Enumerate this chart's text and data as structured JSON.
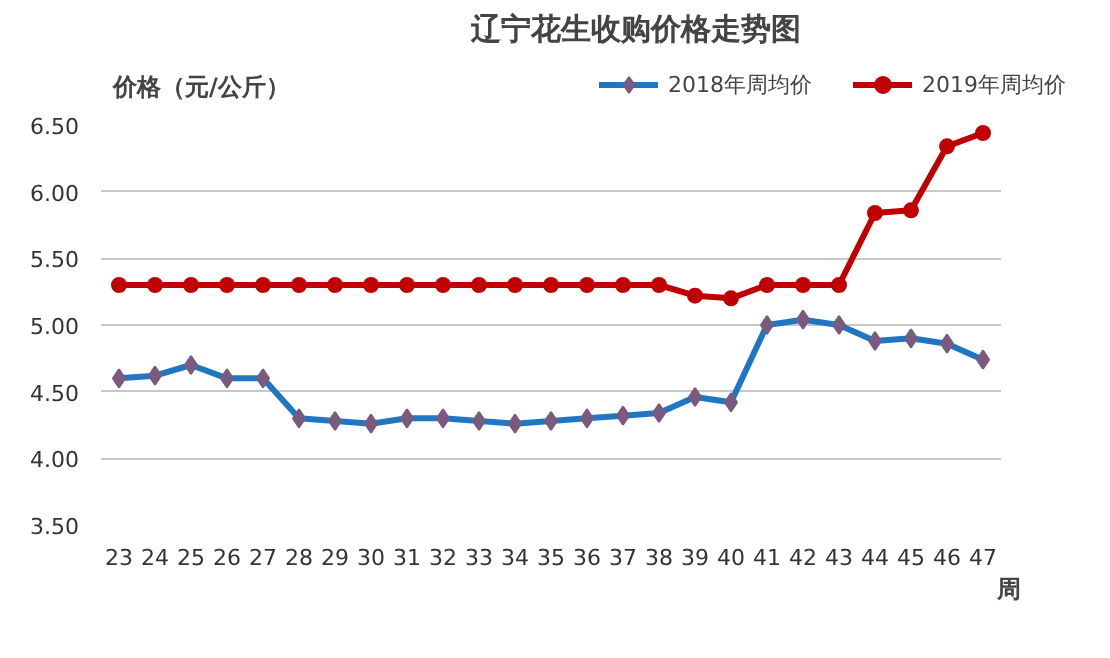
{
  "chart_data": {
    "type": "line",
    "title": "辽宁花生收购价格走势图",
    "ylabel": "价格（元/公斤）",
    "xlabel": "周",
    "categories": [
      "23",
      "24",
      "25",
      "26",
      "27",
      "28",
      "29",
      "30",
      "31",
      "32",
      "33",
      "34",
      "35",
      "36",
      "37",
      "38",
      "39",
      "40",
      "41",
      "42",
      "43",
      "44",
      "45",
      "46",
      "47"
    ],
    "series": [
      {
        "name": "2018年周均价",
        "color": "#1f77c4",
        "marker": "diamond",
        "values": [
          4.6,
          4.62,
          4.7,
          4.6,
          4.6,
          4.3,
          4.28,
          4.26,
          4.3,
          4.3,
          4.28,
          4.26,
          4.28,
          4.3,
          4.32,
          4.34,
          4.46,
          4.42,
          5.0,
          5.04,
          5.0,
          4.88,
          4.9,
          4.86,
          4.74
        ]
      },
      {
        "name": "2019年周均价",
        "color": "#c00000",
        "marker": "circle",
        "values": [
          5.3,
          5.3,
          5.3,
          5.3,
          5.3,
          5.3,
          5.3,
          5.3,
          5.3,
          5.3,
          5.3,
          5.3,
          5.3,
          5.3,
          5.3,
          5.3,
          5.22,
          5.2,
          5.3,
          5.3,
          5.3,
          5.84,
          5.86,
          6.34,
          6.44
        ]
      }
    ],
    "ylim": [
      3.5,
      6.5
    ],
    "yticks": [
      {
        "value": 3.5,
        "label": "3.50"
      },
      {
        "value": 4.0,
        "label": "4.00"
      },
      {
        "value": 4.5,
        "label": "4.50"
      },
      {
        "value": 5.0,
        "label": "5.00"
      },
      {
        "value": 5.5,
        "label": "5.50"
      },
      {
        "value": 6.0,
        "label": "6.00"
      },
      {
        "value": 6.5,
        "label": "6.50"
      }
    ],
    "grid": "y",
    "legend": "top right",
    "line_style": "solid"
  }
}
